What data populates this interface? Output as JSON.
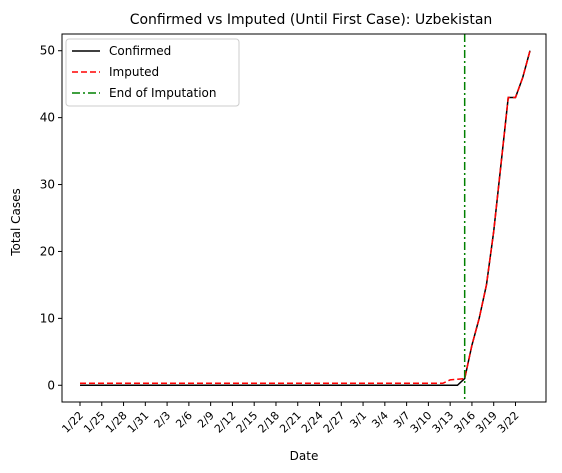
{
  "chart_data": {
    "type": "line",
    "title": "Confirmed vs Imputed (Until First Case): Uzbekistan",
    "xlabel": "Date",
    "ylabel": "Total Cases",
    "ylim": [
      -2.5,
      52.5
    ],
    "yticks": [
      0,
      10,
      20,
      30,
      40,
      50
    ],
    "grid": false,
    "legend_position": "top-left",
    "x": [
      "1/22",
      "1/23",
      "1/24",
      "1/25",
      "1/26",
      "1/27",
      "1/28",
      "1/29",
      "1/30",
      "1/31",
      "2/1",
      "2/2",
      "2/3",
      "2/4",
      "2/5",
      "2/6",
      "2/7",
      "2/8",
      "2/9",
      "2/10",
      "2/11",
      "2/12",
      "2/13",
      "2/14",
      "2/15",
      "2/16",
      "2/17",
      "2/18",
      "2/19",
      "2/20",
      "2/21",
      "2/22",
      "2/23",
      "2/24",
      "2/25",
      "2/26",
      "2/27",
      "2/28",
      "2/29",
      "3/1",
      "3/2",
      "3/3",
      "3/4",
      "3/5",
      "3/6",
      "3/7",
      "3/8",
      "3/9",
      "3/10",
      "3/11",
      "3/12",
      "3/13",
      "3/14",
      "3/15",
      "3/16",
      "3/17",
      "3/18",
      "3/19",
      "3/20",
      "3/21",
      "3/22",
      "3/23",
      "3/24"
    ],
    "xtick_labels": [
      "1/22",
      "1/25",
      "1/28",
      "1/31",
      "2/3",
      "2/6",
      "2/9",
      "2/12",
      "2/15",
      "2/18",
      "2/21",
      "2/24",
      "2/27",
      "3/1",
      "3/4",
      "3/7",
      "3/10",
      "3/13",
      "3/16",
      "3/19",
      "3/22"
    ],
    "series": [
      {
        "name": "Confirmed",
        "color": "#000000",
        "style": "solid",
        "values": [
          0,
          0,
          0,
          0,
          0,
          0,
          0,
          0,
          0,
          0,
          0,
          0,
          0,
          0,
          0,
          0,
          0,
          0,
          0,
          0,
          0,
          0,
          0,
          0,
          0,
          0,
          0,
          0,
          0,
          0,
          0,
          0,
          0,
          0,
          0,
          0,
          0,
          0,
          0,
          0,
          0,
          0,
          0,
          0,
          0,
          0,
          0,
          0,
          0,
          0,
          0,
          0,
          0,
          1,
          6,
          10,
          15,
          23,
          33,
          43,
          43,
          46,
          50
        ]
      },
      {
        "name": "Imputed",
        "color": "#ff0000",
        "style": "dashed",
        "values": [
          0.3,
          0.3,
          0.3,
          0.3,
          0.3,
          0.3,
          0.3,
          0.3,
          0.3,
          0.3,
          0.3,
          0.3,
          0.3,
          0.3,
          0.3,
          0.3,
          0.3,
          0.3,
          0.3,
          0.3,
          0.3,
          0.3,
          0.3,
          0.3,
          0.3,
          0.3,
          0.3,
          0.3,
          0.3,
          0.3,
          0.3,
          0.3,
          0.3,
          0.3,
          0.3,
          0.3,
          0.3,
          0.3,
          0.3,
          0.3,
          0.3,
          0.3,
          0.3,
          0.3,
          0.3,
          0.3,
          0.3,
          0.3,
          0.3,
          0.3,
          0.3,
          0.8,
          0.9,
          1,
          6,
          10,
          15,
          23,
          33,
          43,
          43,
          46,
          50
        ]
      }
    ],
    "vline": {
      "name": "End of Imputation",
      "x": "3/15",
      "color": "#008000",
      "style": "dashdot"
    }
  }
}
